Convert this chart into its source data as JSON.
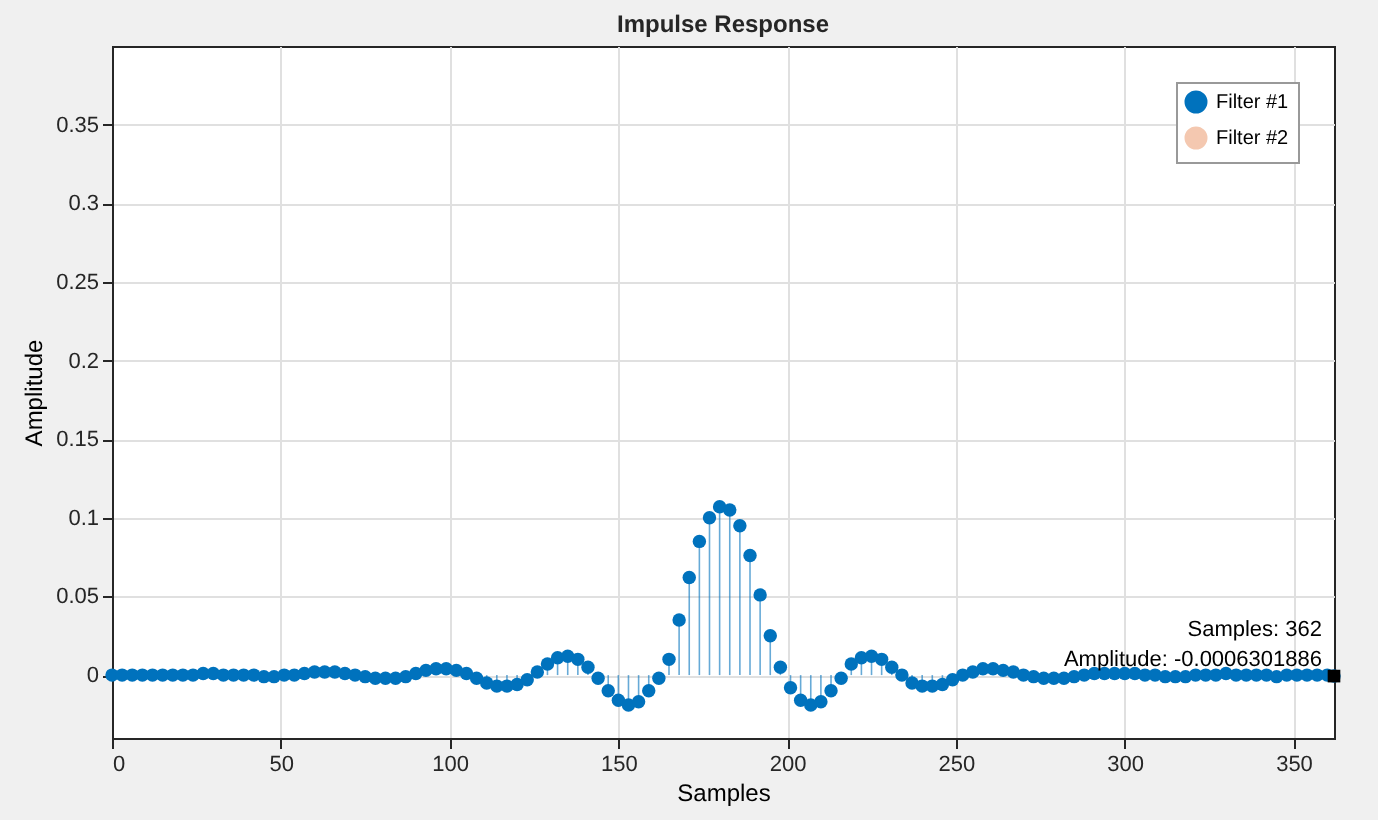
{
  "chart_data": {
    "type": "lollipop",
    "title": "Impulse Response",
    "xlabel": "Samples",
    "ylabel": "Amplitude",
    "xlim": [
      0,
      362
    ],
    "xticks": [
      0,
      50,
      100,
      150,
      200,
      250,
      300,
      350
    ],
    "ylim": [
      -0.04,
      0.4
    ],
    "yticks": [
      0,
      0.05,
      0.1,
      0.15,
      0.2,
      0.25,
      0.3,
      0.35
    ],
    "grid": true,
    "legend": "top right",
    "marker": "circle",
    "annotations": [
      {
        "text": "Samples: 362\nAmplitude: -0.0006301886",
        "x": 362,
        "y": -0.0006301886
      }
    ],
    "series": [
      {
        "name": "Filter #1",
        "color": "#0072bd",
        "x": [
          0,
          3,
          6,
          9,
          12,
          15,
          18,
          21,
          24,
          27,
          30,
          33,
          36,
          39,
          42,
          45,
          48,
          51,
          54,
          57,
          60,
          63,
          66,
          69,
          72,
          75,
          78,
          81,
          84,
          87,
          90,
          93,
          96,
          99,
          102,
          105,
          108,
          111,
          114,
          117,
          120,
          123,
          126,
          129,
          132,
          135,
          138,
          141,
          144,
          147,
          150,
          153,
          156,
          159,
          162,
          165,
          168,
          171,
          174,
          177,
          180,
          183,
          186,
          189,
          192,
          195,
          198,
          201,
          204,
          207,
          210,
          213,
          216,
          219,
          222,
          225,
          228,
          231,
          234,
          237,
          240,
          243,
          246,
          249,
          252,
          255,
          258,
          261,
          264,
          267,
          270,
          273,
          276,
          279,
          282,
          285,
          288,
          291,
          294,
          297,
          300,
          303,
          306,
          309,
          312,
          315,
          318,
          321,
          324,
          327,
          330,
          333,
          336,
          339,
          342,
          345,
          348,
          351,
          354,
          357,
          360,
          362
        ],
        "values": [
          0,
          0,
          0,
          0,
          0,
          0,
          0,
          0,
          0,
          0.001,
          0.001,
          0,
          0,
          0,
          0,
          -0.001,
          -0.001,
          0,
          0,
          0.001,
          0.002,
          0.002,
          0.002,
          0.001,
          0,
          -0.001,
          -0.002,
          -0.002,
          -0.002,
          -0.001,
          0.001,
          0.003,
          0.004,
          0.004,
          0.003,
          0.001,
          -0.002,
          -0.005,
          -0.007,
          -0.007,
          -0.006,
          -0.003,
          0.002,
          0.007,
          0.011,
          0.012,
          0.01,
          0.005,
          -0.002,
          -0.01,
          -0.016,
          -0.019,
          -0.017,
          -0.01,
          -0.002,
          0.01,
          0.035,
          0.062,
          0.085,
          0.1,
          0.107,
          0.105,
          0.095,
          0.076,
          0.051,
          0.025,
          0.005,
          -0.008,
          -0.016,
          -0.019,
          -0.017,
          -0.01,
          -0.002,
          0.007,
          0.011,
          0.012,
          0.01,
          0.005,
          0,
          -0.005,
          -0.007,
          -0.007,
          -0.006,
          -0.003,
          0,
          0.002,
          0.004,
          0.004,
          0.003,
          0.002,
          0,
          -0.001,
          -0.002,
          -0.002,
          -0.002,
          -0.001,
          0,
          0.001,
          0.001,
          0.001,
          0.001,
          0.001,
          0,
          0,
          -0.001,
          -0.001,
          -0.001,
          0,
          0,
          0,
          0.001,
          0,
          0,
          0,
          0,
          -0.001,
          0,
          0,
          0,
          0,
          0,
          -0.0006301886
        ]
      },
      {
        "name": "Filter #2",
        "color": "#f4c8b0"
      }
    ]
  }
}
